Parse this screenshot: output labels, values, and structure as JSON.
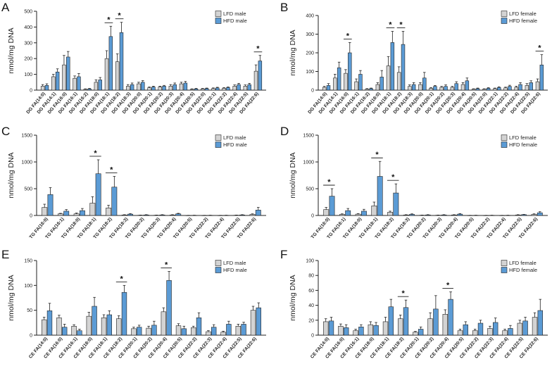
{
  "colors": {
    "lfd": "#d3d3d3",
    "hfd": "#5b9bd5",
    "axis": "#222222"
  },
  "chart_data": [
    {
      "panel": "A",
      "type": "bar",
      "ylabel": "nmol/mg DNA",
      "ylim": [
        0,
        500
      ],
      "yticks": [
        0,
        100,
        200,
        300,
        400,
        500
      ],
      "legend": [
        "LFD male",
        "HFD male"
      ],
      "categories": [
        "DG FA(14:0)",
        "DG FA(14:1)",
        "DG FA(16:0)",
        "DG FA(16:1)",
        "DG FA(16:2)",
        "DG FA(18:0)",
        "DG FA(18:1)",
        "DG FA(18:2)",
        "DG FA(18:3)",
        "DG FA(20:0)",
        "DG FA(20:1)",
        "DG FA(20:2)",
        "DG FA(20:3)",
        "DG FA(20:4)",
        "DG FA(20:5)",
        "DG FA(22:0)",
        "DG FA(22:1)",
        "DG FA(22:2)",
        "DG FA(22:4)",
        "DG FA(22:5)",
        "DG FA(22:6)"
      ],
      "series": [
        {
          "name": "LFD male",
          "values": [
            25,
            85,
            160,
            75,
            5,
            50,
            200,
            180,
            25,
            40,
            15,
            20,
            25,
            40,
            5,
            8,
            10,
            12,
            25,
            25,
            120
          ],
          "errors": [
            10,
            15,
            60,
            15,
            3,
            15,
            50,
            50,
            10,
            10,
            5,
            5,
            10,
            10,
            3,
            3,
            4,
            4,
            8,
            8,
            40
          ]
        },
        {
          "name": "HFD male",
          "values": [
            30,
            115,
            210,
            85,
            8,
            65,
            340,
            365,
            35,
            50,
            20,
            25,
            35,
            45,
            8,
            10,
            14,
            16,
            35,
            35,
            185
          ],
          "errors": [
            10,
            20,
            35,
            20,
            3,
            15,
            65,
            65,
            10,
            10,
            5,
            5,
            10,
            10,
            3,
            3,
            4,
            4,
            8,
            8,
            35
          ]
        }
      ],
      "significant": [
        6,
        7,
        20
      ]
    },
    {
      "panel": "B",
      "type": "bar",
      "ylabel": "nmol/mg DNA",
      "ylim": [
        0,
        400
      ],
      "yticks": [
        0,
        100,
        200,
        300,
        400
      ],
      "legend": [
        "LFD female",
        "HFD female"
      ],
      "categories": [
        "DG FA(14:0)",
        "DG FA(14:1)",
        "DG FA(16:0)",
        "DG FA(16:1)",
        "DG FA(16:2)",
        "DG FA(18:0)",
        "DG FA(18:1)",
        "DG FA(18:2)",
        "DG FA(18:3)",
        "DG FA(20:0)",
        "DG FA(20:1)",
        "DG FA(20:2)",
        "DG FA(20:3)",
        "DG FA(20:4)",
        "DG FA(20:5)",
        "DG FA(22:0)",
        "DG FA(22:1)",
        "DG FA(22:2)",
        "DG FA(22:4)",
        "DG FA(22:5)",
        "DG FA(22:6)"
      ],
      "series": [
        {
          "name": "LFD female",
          "values": [
            15,
            65,
            90,
            45,
            5,
            30,
            130,
            95,
            20,
            30,
            10,
            15,
            15,
            30,
            5,
            5,
            8,
            12,
            15,
            25,
            45
          ],
          "errors": [
            5,
            20,
            20,
            15,
            3,
            10,
            50,
            30,
            8,
            10,
            4,
            5,
            5,
            10,
            2,
            2,
            3,
            4,
            6,
            10,
            15
          ]
        },
        {
          "name": "HFD female",
          "values": [
            25,
            120,
            200,
            85,
            8,
            70,
            255,
            245,
            30,
            65,
            20,
            20,
            35,
            50,
            8,
            10,
            14,
            20,
            30,
            40,
            135
          ],
          "errors": [
            10,
            30,
            55,
            20,
            3,
            35,
            60,
            70,
            10,
            30,
            5,
            8,
            10,
            15,
            3,
            3,
            4,
            6,
            10,
            10,
            55
          ]
        }
      ],
      "significant": [
        2,
        6,
        7,
        20
      ]
    },
    {
      "panel": "C",
      "type": "bar",
      "ylabel": "nmol/mg DNA",
      "ylim": [
        0,
        1500
      ],
      "yticks": [
        0,
        500,
        1000,
        1500
      ],
      "legend": [
        "LFD male",
        "HFD male"
      ],
      "categories": [
        "TG FA(16:0)",
        "TG FA(16:1)",
        "TG FA(18:0)",
        "TG FA(18:1)",
        "TG FA(18:2)",
        "TG FA(18:3)",
        "TG FA(20:2)",
        "TG FA(20:3)",
        "TG FA(20:4)",
        "TG FA(20:5)",
        "TG FA(22:2)",
        "TG FA(22:4)",
        "TG FA(22:5)",
        "TG FA(22:6)"
      ],
      "series": [
        {
          "name": "LFD male",
          "values": [
            150,
            30,
            30,
            230,
            140,
            10,
            5,
            5,
            10,
            2,
            2,
            2,
            5,
            20
          ],
          "errors": [
            60,
            10,
            15,
            120,
            50,
            5,
            3,
            3,
            5,
            1,
            1,
            1,
            3,
            10
          ]
        },
        {
          "name": "HFD male",
          "values": [
            390,
            80,
            90,
            780,
            530,
            25,
            10,
            10,
            30,
            3,
            3,
            3,
            10,
            100
          ],
          "errors": [
            130,
            30,
            40,
            260,
            200,
            10,
            5,
            5,
            10,
            2,
            2,
            2,
            5,
            50
          ]
        }
      ],
      "significant": [
        3,
        4
      ]
    },
    {
      "panel": "D",
      "type": "bar",
      "ylabel": "nmol/mg DNA",
      "ylim": [
        0,
        1500
      ],
      "yticks": [
        0,
        500,
        1000,
        1500
      ],
      "legend": [
        "LFD female",
        "HFD female"
      ],
      "categories": [
        "TG FA(16:0)",
        "TG FA(16:1)",
        "TG FA(18:0)",
        "TG FA(18:1)",
        "TG FA(18:2)",
        "TG FA(18:3)",
        "TG FA(20:2)",
        "TG FA(20:3)",
        "TG FA(20:4)",
        "TG FA(20:5)",
        "TG FA(22:2)",
        "TG FA(22:4)",
        "TG FA(22:5)",
        "TG FA(22:6)"
      ],
      "series": [
        {
          "name": "LFD female",
          "values": [
            110,
            20,
            25,
            180,
            60,
            10,
            5,
            5,
            10,
            2,
            2,
            2,
            10,
            20
          ],
          "errors": [
            40,
            10,
            10,
            70,
            20,
            5,
            3,
            3,
            5,
            1,
            1,
            1,
            5,
            10
          ]
        },
        {
          "name": "HFD female",
          "values": [
            360,
            90,
            80,
            730,
            420,
            20,
            10,
            10,
            25,
            3,
            3,
            3,
            15,
            50
          ],
          "errors": [
            140,
            40,
            35,
            280,
            170,
            10,
            5,
            5,
            10,
            2,
            2,
            2,
            5,
            20
          ]
        }
      ],
      "significant": [
        0,
        3,
        4
      ]
    },
    {
      "panel": "E",
      "type": "bar",
      "ylabel": "nmol/mg DNA",
      "ylim": [
        0,
        150
      ],
      "yticks": [
        0,
        50,
        100,
        150
      ],
      "legend": [
        "LFD male",
        "HFD male"
      ],
      "categories": [
        "CE FA(14:0)",
        "CE FA(16:0)",
        "CE FA(16:1)",
        "CE FA(18:0)",
        "CE FA(18:1)",
        "CE FA(18:2)",
        "CE FA(20:1)",
        "CE FA(20:2)",
        "CE FA(20:4)",
        "CE FA(20:5)",
        "CE FA(22:2)",
        "CE FA(22:3)",
        "CE FA(22:4)",
        "CE FA(22:5)",
        "CE FA(22:6)"
      ],
      "series": [
        {
          "name": "LFD male",
          "values": [
            31,
            35,
            18,
            38,
            35,
            33,
            13,
            14,
            47,
            19,
            15,
            7,
            6,
            18,
            50
          ],
          "errors": [
            5,
            5,
            3,
            8,
            6,
            6,
            3,
            4,
            8,
            4,
            3,
            2,
            2,
            4,
            8
          ]
        },
        {
          "name": "HFD male",
          "values": [
            49,
            16,
            9,
            58,
            41,
            86,
            16,
            20,
            110,
            13,
            35,
            16,
            22,
            22,
            55
          ],
          "errors": [
            15,
            6,
            3,
            18,
            8,
            14,
            4,
            8,
            18,
            5,
            10,
            5,
            6,
            4,
            10
          ]
        }
      ],
      "significant": [
        5,
        8
      ]
    },
    {
      "panel": "F",
      "type": "bar",
      "ylabel": "nmol/mg DNA",
      "ylim": [
        0,
        100
      ],
      "yticks": [
        0,
        20,
        40,
        60,
        80,
        100
      ],
      "legend": [
        "LFD female",
        "HFD female"
      ],
      "categories": [
        "CE FA(14:0)",
        "CE FA(16:0)",
        "CE FA(16:1)",
        "CE FA(18:0)",
        "CE FA(18:1)",
        "CE FA(18:2)",
        "CE FA(20:1)",
        "CE FA(20:2)",
        "CE FA(20:4)",
        "CE FA(20:5)",
        "CE FA(22:2)",
        "CE FA(22:3)",
        "CE FA(22:4)",
        "CE FA(22:5)",
        "CE FA(22:6)"
      ],
      "series": [
        {
          "name": "LFD female",
          "values": [
            18,
            12,
            6,
            14,
            18,
            22,
            4,
            22,
            28,
            6,
            6,
            9,
            6,
            16,
            24
          ],
          "errors": [
            4,
            3,
            2,
            4,
            6,
            5,
            1,
            8,
            6,
            2,
            2,
            3,
            2,
            4,
            6
          ]
        },
        {
          "name": "HFD female",
          "values": [
            19,
            10,
            11,
            13,
            38,
            37,
            8,
            35,
            48,
            14,
            16,
            17,
            9,
            19,
            33
          ],
          "errors": [
            5,
            4,
            3,
            4,
            10,
            10,
            3,
            18,
            10,
            4,
            4,
            6,
            4,
            5,
            15
          ]
        }
      ],
      "significant": [
        5,
        8
      ]
    }
  ]
}
